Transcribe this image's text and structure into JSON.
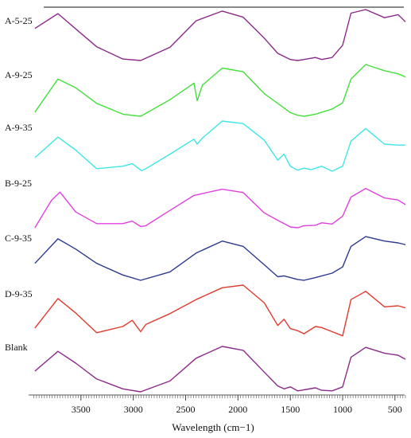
{
  "chart_data": {
    "type": "line",
    "xlabel": "Wavelength (cm−1)",
    "xlim": [
      4000,
      400
    ],
    "x_reversed": true,
    "x_ticks": [
      3500,
      3000,
      2500,
      2000,
      1500,
      1000,
      500
    ],
    "x_tick_labels": [
      "3500",
      "3000",
      "2500",
      "2000",
      "1500",
      "1000",
      "500"
    ],
    "y_axis_shown": false,
    "grid": false,
    "legend": "none",
    "note_y": "curves are vertically offset; values are relative heights within each curve (0 = lowest, 1 = highest)",
    "series": [
      {
        "name": "A-5-25",
        "color": "#8b2a8b",
        "x": [
          3940,
          3720,
          3550,
          3350,
          3100,
          2930,
          2650,
          2400,
          2150,
          1950,
          1750,
          1620,
          1560,
          1500,
          1430,
          1370,
          1260,
          1200,
          1100,
          1000,
          920,
          780,
          600,
          470,
          400
        ],
        "y": [
          0.63,
          0.92,
          0.62,
          0.27,
          0.03,
          0.0,
          0.26,
          0.78,
          0.97,
          0.85,
          0.44,
          0.14,
          0.08,
          0.02,
          0.0,
          0.02,
          0.06,
          0.02,
          0.06,
          0.3,
          0.93,
          1.0,
          0.84,
          0.9,
          0.76
        ]
      },
      {
        "name": "A-9-25",
        "color": "#44e03a",
        "x": [
          3940,
          3720,
          3550,
          3350,
          3100,
          2930,
          2650,
          2420,
          2390,
          2340,
          2150,
          1950,
          1750,
          1560,
          1500,
          1430,
          1370,
          1260,
          1100,
          1000,
          920,
          780,
          600,
          470,
          400
        ],
        "y": [
          0.08,
          0.72,
          0.55,
          0.25,
          0.04,
          0.0,
          0.32,
          0.64,
          0.3,
          0.6,
          0.93,
          0.86,
          0.44,
          0.16,
          0.07,
          0.02,
          0.0,
          0.04,
          0.14,
          0.26,
          0.72,
          1.0,
          0.88,
          0.82,
          0.76
        ]
      },
      {
        "name": "A-9-35",
        "color": "#3fe6e6",
        "x": [
          3940,
          3720,
          3550,
          3350,
          3100,
          3010,
          2920,
          2880,
          2650,
          2420,
          2390,
          2340,
          2150,
          1950,
          1750,
          1620,
          1560,
          1500,
          1430,
          1370,
          1300,
          1200,
          1100,
          1000,
          920,
          780,
          600,
          470,
          400
        ],
        "y": [
          0.27,
          0.68,
          0.42,
          0.05,
          0.1,
          0.15,
          0.01,
          0.05,
          0.34,
          0.64,
          0.54,
          0.66,
          1.0,
          0.95,
          0.62,
          0.22,
          0.34,
          0.1,
          0.02,
          0.06,
          0.03,
          0.1,
          0.0,
          0.1,
          0.6,
          0.85,
          0.54,
          0.52,
          0.52
        ]
      },
      {
        "name": "B-9-25",
        "color": "#e040e0",
        "x": [
          3940,
          3780,
          3700,
          3550,
          3350,
          3100,
          3010,
          2930,
          2880,
          2650,
          2420,
          2150,
          1950,
          1750,
          1620,
          1560,
          1500,
          1430,
          1370,
          1260,
          1200,
          1100,
          1000,
          920,
          780,
          600,
          470,
          400
        ],
        "y": [
          0.0,
          0.67,
          0.86,
          0.38,
          0.1,
          0.1,
          0.16,
          0.03,
          0.05,
          0.42,
          0.78,
          0.93,
          0.85,
          0.36,
          0.18,
          0.1,
          0.02,
          0.0,
          0.05,
          0.06,
          0.12,
          0.09,
          0.28,
          0.74,
          0.95,
          0.72,
          0.67,
          0.56
        ]
      },
      {
        "name": "C-9-35",
        "color": "#2c3a8e",
        "x": [
          3940,
          3720,
          3550,
          3350,
          3100,
          2930,
          2650,
          2400,
          2150,
          1950,
          1750,
          1620,
          1560,
          1430,
          1370,
          1260,
          1100,
          1000,
          920,
          780,
          600,
          470,
          400
        ],
        "y": [
          0.38,
          0.93,
          0.7,
          0.38,
          0.12,
          0.0,
          0.19,
          0.61,
          0.88,
          0.76,
          0.35,
          0.08,
          0.1,
          0.02,
          0.0,
          0.06,
          0.16,
          0.3,
          0.76,
          0.98,
          0.88,
          0.84,
          0.8
        ]
      },
      {
        "name": "D-9-35",
        "color": "#e03a2e",
        "x": [
          3940,
          3720,
          3550,
          3350,
          3100,
          3010,
          2930,
          2880,
          2650,
          2400,
          2150,
          1950,
          1750,
          1620,
          1560,
          1500,
          1430,
          1370,
          1260,
          1200,
          1100,
          1000,
          920,
          780,
          600,
          470,
          400
        ],
        "y": [
          0.17,
          0.74,
          0.46,
          0.08,
          0.2,
          0.32,
          0.1,
          0.24,
          0.45,
          0.72,
          0.95,
          1.0,
          0.66,
          0.22,
          0.34,
          0.16,
          0.12,
          0.06,
          0.2,
          0.18,
          0.1,
          0.02,
          0.72,
          0.88,
          0.58,
          0.6,
          0.56
        ]
      },
      {
        "name": "Blank",
        "color": "#8b2a8b",
        "x": [
          3940,
          3720,
          3550,
          3350,
          3100,
          2930,
          2650,
          2400,
          2150,
          1950,
          1750,
          1620,
          1560,
          1500,
          1430,
          1370,
          1260,
          1200,
          1100,
          1000,
          920,
          780,
          600,
          470,
          400
        ],
        "y": [
          0.42,
          0.82,
          0.58,
          0.26,
          0.06,
          0.0,
          0.22,
          0.68,
          0.92,
          0.84,
          0.4,
          0.12,
          0.06,
          0.1,
          0.02,
          0.04,
          0.08,
          0.03,
          0.02,
          0.1,
          0.7,
          0.9,
          0.78,
          0.74,
          0.66
        ]
      }
    ]
  }
}
